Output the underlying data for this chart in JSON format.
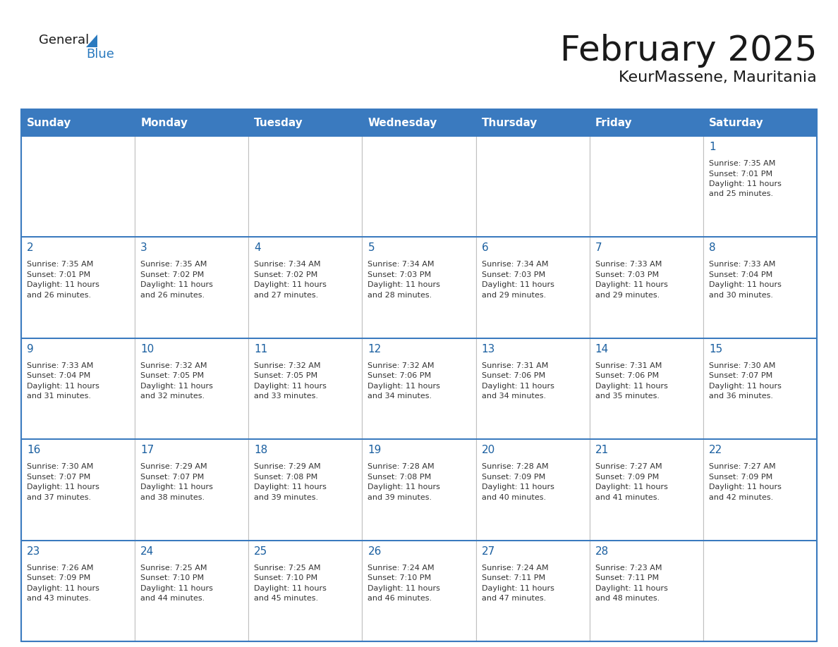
{
  "title": "February 2025",
  "subtitle": "KeurMassene, Mauritania",
  "header_bg": "#3a7abf",
  "header_text": "#ffffff",
  "border_color": "#3a7abf",
  "grid_color": "#c0c0c0",
  "day_headers": [
    "Sunday",
    "Monday",
    "Tuesday",
    "Wednesday",
    "Thursday",
    "Friday",
    "Saturday"
  ],
  "title_color": "#1a1a1a",
  "subtitle_color": "#1a1a1a",
  "cell_text_color": "#333333",
  "day_num_color": "#1a5fa0",
  "logo_general_color": "#1a1a1a",
  "logo_blue_color": "#2a7abf",
  "logo_triangle_color": "#2a7abf",
  "weeks": [
    [
      null,
      null,
      null,
      null,
      null,
      null,
      {
        "day": 1,
        "sunrise": "7:35 AM",
        "sunset": "7:01 PM",
        "daylight_hours": 11,
        "daylight_minutes": 25
      }
    ],
    [
      {
        "day": 2,
        "sunrise": "7:35 AM",
        "sunset": "7:01 PM",
        "daylight_hours": 11,
        "daylight_minutes": 26
      },
      {
        "day": 3,
        "sunrise": "7:35 AM",
        "sunset": "7:02 PM",
        "daylight_hours": 11,
        "daylight_minutes": 26
      },
      {
        "day": 4,
        "sunrise": "7:34 AM",
        "sunset": "7:02 PM",
        "daylight_hours": 11,
        "daylight_minutes": 27
      },
      {
        "day": 5,
        "sunrise": "7:34 AM",
        "sunset": "7:03 PM",
        "daylight_hours": 11,
        "daylight_minutes": 28
      },
      {
        "day": 6,
        "sunrise": "7:34 AM",
        "sunset": "7:03 PM",
        "daylight_hours": 11,
        "daylight_minutes": 29
      },
      {
        "day": 7,
        "sunrise": "7:33 AM",
        "sunset": "7:03 PM",
        "daylight_hours": 11,
        "daylight_minutes": 29
      },
      {
        "day": 8,
        "sunrise": "7:33 AM",
        "sunset": "7:04 PM",
        "daylight_hours": 11,
        "daylight_minutes": 30
      }
    ],
    [
      {
        "day": 9,
        "sunrise": "7:33 AM",
        "sunset": "7:04 PM",
        "daylight_hours": 11,
        "daylight_minutes": 31
      },
      {
        "day": 10,
        "sunrise": "7:32 AM",
        "sunset": "7:05 PM",
        "daylight_hours": 11,
        "daylight_minutes": 32
      },
      {
        "day": 11,
        "sunrise": "7:32 AM",
        "sunset": "7:05 PM",
        "daylight_hours": 11,
        "daylight_minutes": 33
      },
      {
        "day": 12,
        "sunrise": "7:32 AM",
        "sunset": "7:06 PM",
        "daylight_hours": 11,
        "daylight_minutes": 34
      },
      {
        "day": 13,
        "sunrise": "7:31 AM",
        "sunset": "7:06 PM",
        "daylight_hours": 11,
        "daylight_minutes": 34
      },
      {
        "day": 14,
        "sunrise": "7:31 AM",
        "sunset": "7:06 PM",
        "daylight_hours": 11,
        "daylight_minutes": 35
      },
      {
        "day": 15,
        "sunrise": "7:30 AM",
        "sunset": "7:07 PM",
        "daylight_hours": 11,
        "daylight_minutes": 36
      }
    ],
    [
      {
        "day": 16,
        "sunrise": "7:30 AM",
        "sunset": "7:07 PM",
        "daylight_hours": 11,
        "daylight_minutes": 37
      },
      {
        "day": 17,
        "sunrise": "7:29 AM",
        "sunset": "7:07 PM",
        "daylight_hours": 11,
        "daylight_minutes": 38
      },
      {
        "day": 18,
        "sunrise": "7:29 AM",
        "sunset": "7:08 PM",
        "daylight_hours": 11,
        "daylight_minutes": 39
      },
      {
        "day": 19,
        "sunrise": "7:28 AM",
        "sunset": "7:08 PM",
        "daylight_hours": 11,
        "daylight_minutes": 39
      },
      {
        "day": 20,
        "sunrise": "7:28 AM",
        "sunset": "7:09 PM",
        "daylight_hours": 11,
        "daylight_minutes": 40
      },
      {
        "day": 21,
        "sunrise": "7:27 AM",
        "sunset": "7:09 PM",
        "daylight_hours": 11,
        "daylight_minutes": 41
      },
      {
        "day": 22,
        "sunrise": "7:27 AM",
        "sunset": "7:09 PM",
        "daylight_hours": 11,
        "daylight_minutes": 42
      }
    ],
    [
      {
        "day": 23,
        "sunrise": "7:26 AM",
        "sunset": "7:09 PM",
        "daylight_hours": 11,
        "daylight_minutes": 43
      },
      {
        "day": 24,
        "sunrise": "7:25 AM",
        "sunset": "7:10 PM",
        "daylight_hours": 11,
        "daylight_minutes": 44
      },
      {
        "day": 25,
        "sunrise": "7:25 AM",
        "sunset": "7:10 PM",
        "daylight_hours": 11,
        "daylight_minutes": 45
      },
      {
        "day": 26,
        "sunrise": "7:24 AM",
        "sunset": "7:10 PM",
        "daylight_hours": 11,
        "daylight_minutes": 46
      },
      {
        "day": 27,
        "sunrise": "7:24 AM",
        "sunset": "7:11 PM",
        "daylight_hours": 11,
        "daylight_minutes": 47
      },
      {
        "day": 28,
        "sunrise": "7:23 AM",
        "sunset": "7:11 PM",
        "daylight_hours": 11,
        "daylight_minutes": 48
      },
      null
    ]
  ]
}
